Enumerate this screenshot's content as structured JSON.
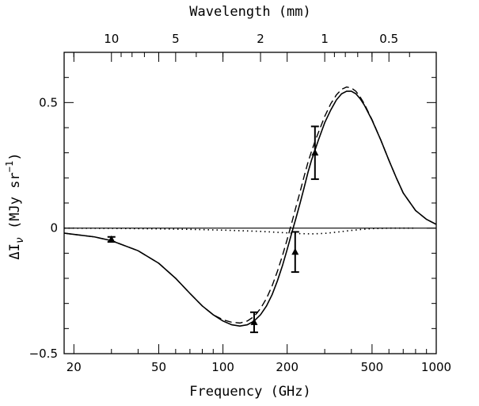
{
  "chart_data": {
    "type": "line",
    "xlabel": "Frequency (GHz)",
    "x2label": "Wavelength (mm)",
    "ylabel": "ΔI_ν (MJy sr^−1)",
    "xscale": "log",
    "xlim": [
      18,
      1000
    ],
    "ylim": [
      -0.5,
      0.7
    ],
    "x_ticks": [
      20,
      50,
      100,
      200,
      500,
      1000
    ],
    "x2_ticks": [
      {
        "label": "10",
        "freq_ghz": 30
      },
      {
        "label": "5",
        "freq_ghz": 60
      },
      {
        "label": "2",
        "freq_ghz": 150
      },
      {
        "label": "1",
        "freq_ghz": 300
      },
      {
        "label": "0.5",
        "freq_ghz": 600
      }
    ],
    "y_ticks": [
      -0.5,
      0,
      0.5
    ],
    "grid": false,
    "series": [
      {
        "style": "solid",
        "x": [
          18,
          20,
          25,
          30,
          40,
          50,
          60,
          70,
          80,
          90,
          100,
          110,
          120,
          130,
          140,
          150,
          160,
          170,
          180,
          190,
          200,
          210,
          220,
          230,
          240,
          250,
          260,
          270,
          280,
          300,
          320,
          340,
          360,
          380,
          400,
          420,
          440,
          460,
          500,
          550,
          600,
          650,
          700,
          800,
          900,
          1000
        ],
        "y": [
          -0.02,
          -0.025,
          -0.035,
          -0.05,
          -0.09,
          -0.14,
          -0.2,
          -0.26,
          -0.31,
          -0.345,
          -0.37,
          -0.385,
          -0.39,
          -0.385,
          -0.37,
          -0.345,
          -0.31,
          -0.265,
          -0.21,
          -0.15,
          -0.085,
          -0.02,
          0.04,
          0.1,
          0.16,
          0.22,
          0.27,
          0.31,
          0.35,
          0.42,
          0.47,
          0.51,
          0.535,
          0.545,
          0.545,
          0.535,
          0.515,
          0.49,
          0.43,
          0.35,
          0.27,
          0.2,
          0.14,
          0.07,
          0.035,
          0.015
        ]
      },
      {
        "style": "dashed",
        "x": [
          18,
          20,
          25,
          30,
          40,
          50,
          60,
          70,
          80,
          90,
          100,
          110,
          120,
          130,
          140,
          150,
          160,
          170,
          180,
          190,
          200,
          210,
          220,
          230,
          240,
          250,
          260,
          270,
          280,
          300,
          320,
          340,
          360,
          380,
          400,
          420,
          440,
          460,
          500,
          550,
          600,
          650,
          700,
          800,
          900,
          1000
        ],
        "y": [
          -0.02,
          -0.025,
          -0.035,
          -0.05,
          -0.09,
          -0.14,
          -0.2,
          -0.26,
          -0.31,
          -0.345,
          -0.365,
          -0.375,
          -0.378,
          -0.37,
          -0.352,
          -0.32,
          -0.28,
          -0.23,
          -0.172,
          -0.11,
          -0.045,
          0.02,
          0.085,
          0.145,
          0.205,
          0.26,
          0.305,
          0.345,
          0.38,
          0.445,
          0.495,
          0.53,
          0.553,
          0.562,
          0.558,
          0.545,
          0.522,
          0.495,
          0.432,
          0.35,
          0.27,
          0.2,
          0.14,
          0.07,
          0.035,
          0.015
        ]
      },
      {
        "style": "dotted",
        "x": [
          18,
          30,
          50,
          80,
          100,
          150,
          200,
          230,
          260,
          300,
          350,
          400,
          450,
          500,
          600,
          700,
          800
        ],
        "y": [
          0,
          -0.001,
          -0.003,
          -0.006,
          -0.008,
          -0.013,
          -0.019,
          -0.022,
          -0.023,
          -0.021,
          -0.015,
          -0.009,
          -0.005,
          -0.002,
          0,
          0,
          0
        ]
      }
    ],
    "data_points": [
      {
        "x": 30,
        "y": -0.045,
        "yerr_low": 0.01,
        "yerr_high": 0.01
      },
      {
        "x": 140,
        "y": -0.375,
        "yerr_low": 0.04,
        "yerr_high": 0.04
      },
      {
        "x": 218,
        "y": -0.095,
        "yerr_low": 0.08,
        "yerr_high": 0.08
      },
      {
        "x": 270,
        "y": 0.3,
        "yerr_low": 0.105,
        "yerr_high": 0.105
      }
    ]
  }
}
